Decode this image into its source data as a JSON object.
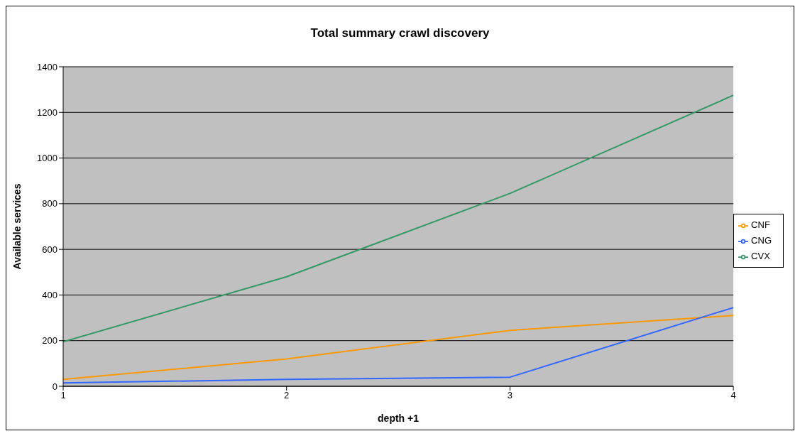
{
  "chart_data": {
    "type": "line",
    "title": "Total summary crawl discovery",
    "xlabel": "depth +1",
    "ylabel": "Available services",
    "x": [
      1,
      2,
      3,
      4
    ],
    "xlim": [
      1,
      4
    ],
    "xticks": [
      1,
      2,
      3,
      4
    ],
    "ylim": [
      0,
      1400
    ],
    "yticks": [
      0,
      200,
      400,
      600,
      800,
      1000,
      1200,
      1400
    ],
    "grid": "y",
    "legend": "right",
    "marker": "none",
    "line_style": "solid",
    "series": [
      {
        "name": "CNF",
        "color": "#ff9900",
        "values": [
          30,
          120,
          245,
          310
        ]
      },
      {
        "name": "CNG",
        "color": "#3366ff",
        "values": [
          15,
          30,
          40,
          345
        ]
      },
      {
        "name": "CVX",
        "color": "#339966",
        "values": [
          195,
          480,
          845,
          1275
        ]
      }
    ]
  }
}
